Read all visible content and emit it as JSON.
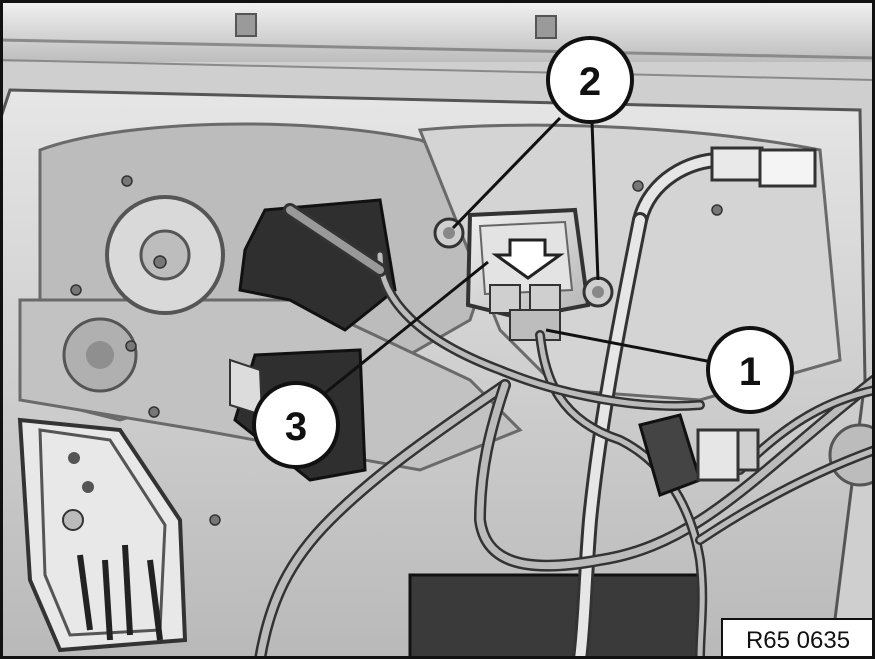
{
  "figure": {
    "reference_code": "R65 0635",
    "callouts": [
      {
        "id": "callout-1",
        "label": "1"
      },
      {
        "id": "callout-2",
        "label": "2"
      },
      {
        "id": "callout-3",
        "label": "3"
      }
    ]
  },
  "colors": {
    "panel": "#c9c9c9",
    "panel_light": "#e4e4e4",
    "panel_dark": "#a6a6a6",
    "shadow": "#4a4a4a",
    "black": "#111111",
    "white": "#ffffff"
  }
}
